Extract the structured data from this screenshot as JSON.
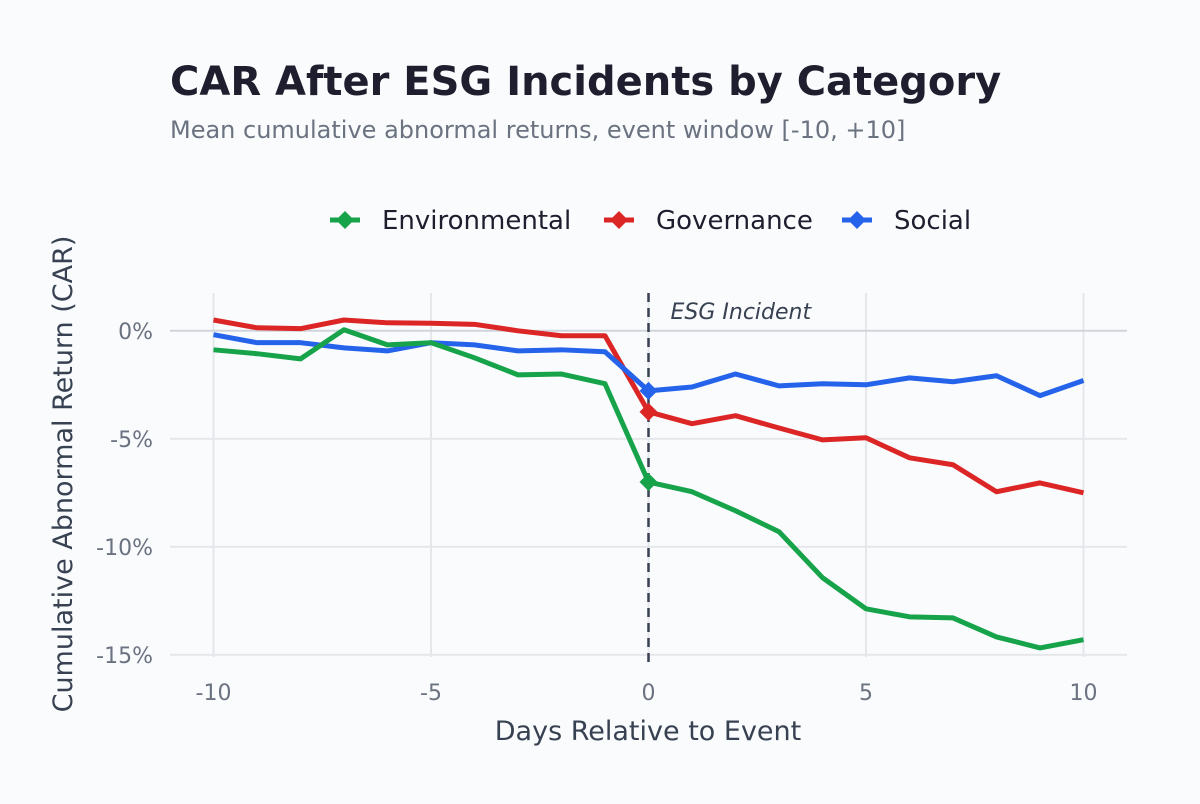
{
  "chart_data": {
    "type": "line",
    "title": "CAR After ESG Incidents by Category",
    "subtitle": "Mean cumulative abnormal returns, event window [-10, +10]",
    "xlabel": "Days Relative to Event",
    "ylabel": "Cumulative Abnormal Return (CAR)",
    "xlim": [
      -11,
      11
    ],
    "ylim": [
      -15.1,
      1.75
    ],
    "xticks": [
      -10,
      -5,
      0,
      5,
      10
    ],
    "xtick_labels": [
      "-10",
      "-5",
      "0",
      "5",
      "10"
    ],
    "yticks": [
      0,
      -5,
      -10,
      -15
    ],
    "ytick_labels": [
      "0%",
      "-5%",
      "-10%",
      "-15%"
    ],
    "grid": true,
    "legend_position": "top",
    "annotation": {
      "x": 0,
      "label": "ESG Incident"
    },
    "x": [
      -10,
      -9,
      -8,
      -7,
      -6,
      -5,
      -4,
      -3,
      -2,
      -1,
      0,
      1,
      2,
      3,
      4,
      5,
      6,
      7,
      8,
      9,
      10
    ],
    "series": [
      {
        "name": "Environmental",
        "color": "#16a34a",
        "values": [
          -0.88,
          -1.06,
          -1.3,
          0.05,
          -0.65,
          -0.55,
          -1.25,
          -2.04,
          -2.0,
          -2.45,
          -7.0,
          -7.45,
          -8.33,
          -9.3,
          -11.43,
          -12.87,
          -13.24,
          -13.29,
          -14.17,
          -14.68,
          -14.3
        ]
      },
      {
        "name": "Governance",
        "color": "#dc2626",
        "values": [
          0.5,
          0.14,
          0.1,
          0.5,
          0.37,
          0.35,
          0.3,
          0.0,
          -0.23,
          -0.23,
          -3.75,
          -4.3,
          -3.93,
          -4.5,
          -5.05,
          -4.95,
          -5.88,
          -6.2,
          -7.45,
          -7.04,
          -7.5
        ]
      },
      {
        "name": "Social",
        "color": "#2563eb",
        "values": [
          -0.18,
          -0.55,
          -0.55,
          -0.79,
          -0.93,
          -0.55,
          -0.65,
          -0.93,
          -0.88,
          -0.97,
          -2.78,
          -2.6,
          -2.0,
          -2.55,
          -2.45,
          -2.5,
          -2.18,
          -2.36,
          -2.08,
          -3.0,
          -2.3
        ]
      }
    ]
  }
}
